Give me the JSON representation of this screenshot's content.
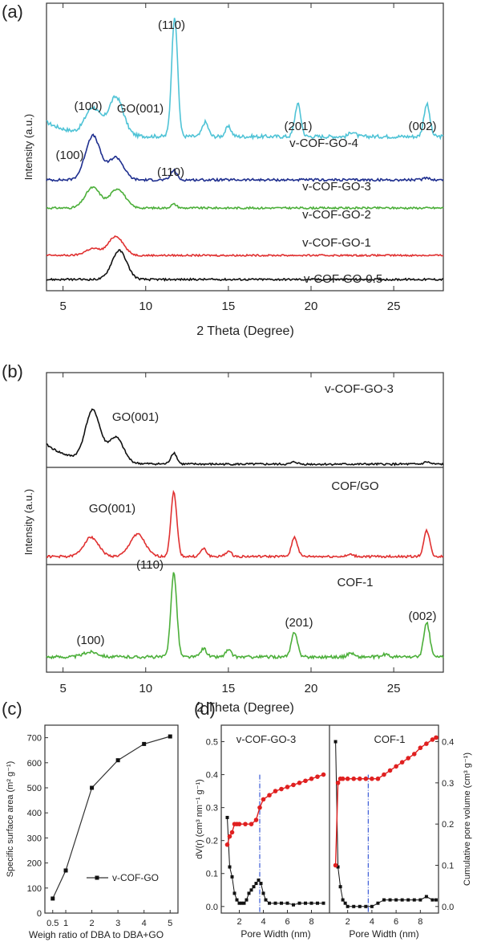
{
  "figure": {
    "panel_labels": [
      "(a)",
      "(b)",
      "(c)",
      "(d)"
    ]
  },
  "chart_data": [
    {
      "id": "a",
      "type": "line",
      "title": "",
      "xlabel": "2 Theta (Degree)",
      "ylabel": "Intensity (a.u.)",
      "xlim": [
        4,
        28
      ],
      "xticks": [
        "5",
        "10",
        "15",
        "20",
        "25"
      ],
      "series": [
        {
          "name": "v-COF-GO-4",
          "color": "#4fc3d6",
          "peaks": [
            [
              6.8,
              0.22
            ],
            [
              8.2,
              0.32
            ],
            [
              11.75,
              1.0
            ],
            [
              13.6,
              0.12
            ],
            [
              15.0,
              0.08
            ],
            [
              19.2,
              0.27
            ],
            [
              22.5,
              0.04
            ],
            [
              27.0,
              0.27
            ]
          ]
        },
        {
          "name": "v-COF-GO-3",
          "color": "#1f2f8f",
          "peaks": [
            [
              6.8,
              0.55
            ],
            [
              8.2,
              0.28
            ],
            [
              11.7,
              0.12
            ],
            [
              27.0,
              0.03
            ]
          ]
        },
        {
          "name": "v-COF-GO-2",
          "color": "#4caf3a",
          "peaks": [
            [
              6.8,
              0.32
            ],
            [
              8.3,
              0.3
            ],
            [
              11.7,
              0.06
            ]
          ]
        },
        {
          "name": "v-COF-GO-1",
          "color": "#e03030",
          "peaks": [
            [
              6.8,
              0.12
            ],
            [
              8.2,
              0.34
            ]
          ]
        },
        {
          "name": "v-COF-GO-0.5",
          "color": "#111111",
          "peaks": [
            [
              8.4,
              0.45
            ]
          ]
        }
      ],
      "annotations": [
        "(110)",
        "(100)",
        "GO(001)",
        "(201)",
        "(002)",
        "(100)",
        "(110)"
      ]
    },
    {
      "id": "b",
      "type": "line",
      "title": "",
      "xlabel": "2 Theta (Degree)",
      "ylabel": "Intensity (a.u.)",
      "xlim": [
        4,
        28
      ],
      "xticks": [
        "5",
        "10",
        "15",
        "20",
        "25"
      ],
      "series": [
        {
          "name": "v-COF-GO-3",
          "color": "#111111",
          "peaks": [
            [
              6.8,
              0.9
            ],
            [
              8.2,
              0.45
            ],
            [
              11.7,
              0.2
            ],
            [
              19.0,
              0.04
            ],
            [
              27.0,
              0.04
            ]
          ]
        },
        {
          "name": "COF/GO",
          "color": "#e03030",
          "peaks": [
            [
              6.7,
              0.3
            ],
            [
              9.5,
              0.35
            ],
            [
              11.7,
              1.0
            ],
            [
              13.5,
              0.12
            ],
            [
              15.0,
              0.08
            ],
            [
              19.0,
              0.3
            ],
            [
              22.4,
              0.03
            ],
            [
              27.0,
              0.4
            ]
          ]
        },
        {
          "name": "COF-1",
          "color": "#4caf3a",
          "peaks": [
            [
              6.7,
              0.06
            ],
            [
              11.7,
              1.0
            ],
            [
              13.5,
              0.1
            ],
            [
              15.0,
              0.08
            ],
            [
              19.0,
              0.3
            ],
            [
              22.4,
              0.05
            ],
            [
              24.5,
              0.03
            ],
            [
              27.0,
              0.4
            ]
          ]
        }
      ],
      "annotations": [
        "GO(001)",
        "GO(001)",
        "(110)",
        "(100)",
        "(201)",
        "(002)"
      ]
    },
    {
      "id": "c",
      "type": "line",
      "title": "",
      "xlabel": "Weigh ratio of DBA to DBA+GO",
      "ylabel": "Specific surface area (m² g⁻¹)",
      "categories": [
        "0.5",
        "1",
        "2",
        "3",
        "4",
        "5"
      ],
      "ylim": [
        0,
        750
      ],
      "yticks": [
        "0",
        "100",
        "200",
        "300",
        "400",
        "500",
        "600",
        "700"
      ],
      "series": [
        {
          "name": "v-COF-GO",
          "values": [
            58,
            170,
            500,
            610,
            675,
            705
          ]
        }
      ]
    },
    {
      "id": "d",
      "type": "scatter",
      "title": "",
      "xlabel": "Pore Width (nm)",
      "ylabel": "dV(r) (cm³ nm⁻¹ g⁻¹)",
      "ylabel_right": "Cumulative pore volume (cm³ g⁻¹)",
      "xlim": [
        0.5,
        9.5
      ],
      "xticks": [
        "2",
        "4",
        "6",
        "8"
      ],
      "ylim": [
        -0.02,
        0.55
      ],
      "yticks": [
        "0.0",
        "0.1",
        "0.2",
        "0.3",
        "0.4",
        "0.5"
      ],
      "ylim_right": [
        -0.016,
        0.44
      ],
      "yticks_right": [
        "0.0",
        "0.1",
        "0.2",
        "0.3",
        "0.4"
      ],
      "vline_x": 3.7,
      "subplots": [
        {
          "name": "v-COF-GO-3",
          "dv_x": [
            1.0,
            1.2,
            1.4,
            1.6,
            1.8,
            2.0,
            2.2,
            2.4,
            2.6,
            2.8,
            3.0,
            3.2,
            3.4,
            3.6,
            3.8,
            4.0,
            4.2,
            4.5,
            5.0,
            5.5,
            6.0,
            6.5,
            7.0,
            7.5,
            8.0,
            8.5,
            9.0
          ],
          "dv_y": [
            0.27,
            0.12,
            0.09,
            0.04,
            0.02,
            0.01,
            0.01,
            0.01,
            0.02,
            0.04,
            0.05,
            0.06,
            0.07,
            0.08,
            0.07,
            0.04,
            0.02,
            0.01,
            0.01,
            0.01,
            0.01,
            0.005,
            0.01,
            0.01,
            0.01,
            0.01,
            0.01
          ],
          "cum_x": [
            1.0,
            1.2,
            1.4,
            1.6,
            1.8,
            2.0,
            2.5,
            3.0,
            3.4,
            3.7,
            4.0,
            4.5,
            5.0,
            5.5,
            6.0,
            6.5,
            7.0,
            7.5,
            8.0,
            8.5,
            9.0
          ],
          "cum_y": [
            0.15,
            0.17,
            0.18,
            0.2,
            0.2,
            0.2,
            0.2,
            0.2,
            0.21,
            0.24,
            0.26,
            0.27,
            0.28,
            0.285,
            0.29,
            0.295,
            0.3,
            0.305,
            0.31,
            0.315,
            0.32
          ]
        },
        {
          "name": "COF-1",
          "dv_x": [
            1.0,
            1.2,
            1.4,
            1.6,
            1.8,
            2.0,
            2.5,
            3.0,
            3.5,
            4.0,
            4.5,
            5.0,
            5.5,
            6.0,
            6.5,
            7.0,
            7.5,
            8.0,
            8.5,
            9.0,
            9.3
          ],
          "dv_y": [
            0.5,
            0.12,
            0.06,
            0.02,
            0.01,
            0.0,
            0.0,
            0.0,
            0.0,
            0.0,
            0.01,
            0.02,
            0.02,
            0.02,
            0.02,
            0.02,
            0.02,
            0.02,
            0.03,
            0.02,
            0.02
          ],
          "cum_x": [
            1.0,
            1.2,
            1.4,
            1.6,
            2.0,
            2.5,
            3.0,
            3.5,
            4.0,
            4.5,
            5.0,
            5.5,
            6.0,
            6.5,
            7.0,
            7.5,
            8.0,
            8.5,
            9.0,
            9.3
          ],
          "cum_y": [
            0.1,
            0.3,
            0.31,
            0.31,
            0.31,
            0.31,
            0.31,
            0.31,
            0.31,
            0.31,
            0.32,
            0.33,
            0.34,
            0.35,
            0.36,
            0.37,
            0.385,
            0.395,
            0.405,
            0.41
          ]
        }
      ]
    }
  ]
}
